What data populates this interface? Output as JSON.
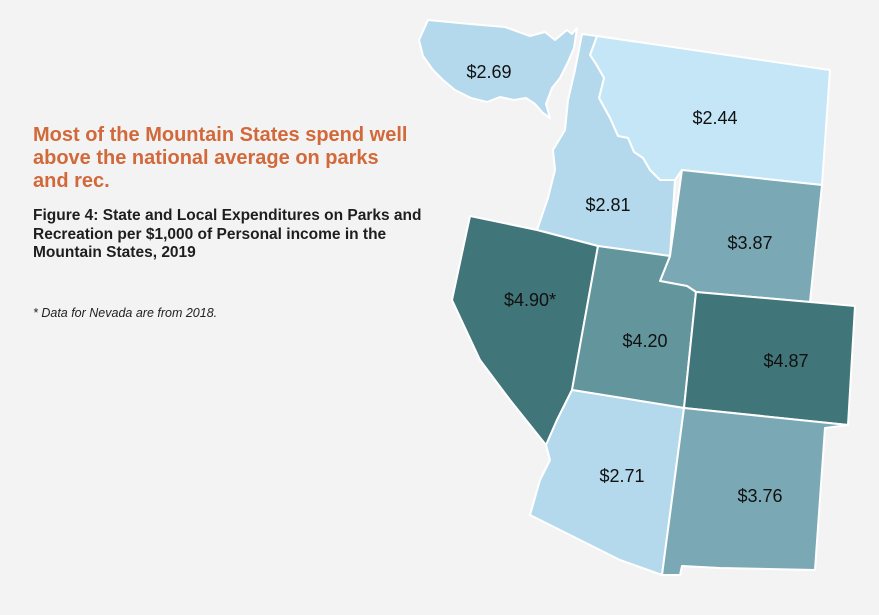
{
  "headline": "Most of the Mountain States spend well above the national average on parks and rec.",
  "figure_title": "Figure 4: State and Local Expenditures on Parks and Recreation per $1,000 of Personal income in the Mountain States, 2019",
  "footnote": "* Data for Nevada are from 2018.",
  "colors": {
    "lightest": "#c5e6f7",
    "light": "#b4d9ec",
    "medium": "#7aa9b5",
    "medium_dark": "#63959d",
    "dark": "#40757a",
    "headline": "#d2693a"
  },
  "chart_data": {
    "type": "choropleth",
    "title": "Figure 4: State and Local Expenditures on Parks and Recreation per $1,000 of Personal income in the Mountain States, 2019",
    "regions": [
      {
        "label": "$2.69",
        "value": 2.69,
        "color": "#b4d9ec"
      },
      {
        "label": "$2.44",
        "value": 2.44,
        "color": "#c5e6f7"
      },
      {
        "label": "$2.81",
        "value": 2.81,
        "color": "#b4d9ec"
      },
      {
        "label": "$3.87",
        "value": 3.87,
        "color": "#7aa9b5"
      },
      {
        "label": "$4.90*",
        "value": 4.9,
        "color": "#40757a"
      },
      {
        "label": "$4.20",
        "value": 4.2,
        "color": "#63959d"
      },
      {
        "label": "$4.87",
        "value": 4.87,
        "color": "#40757a"
      },
      {
        "label": "$2.71",
        "value": 2.71,
        "color": "#b4d9ec"
      },
      {
        "label": "$3.76",
        "value": 3.76,
        "color": "#7aa9b5"
      }
    ]
  }
}
